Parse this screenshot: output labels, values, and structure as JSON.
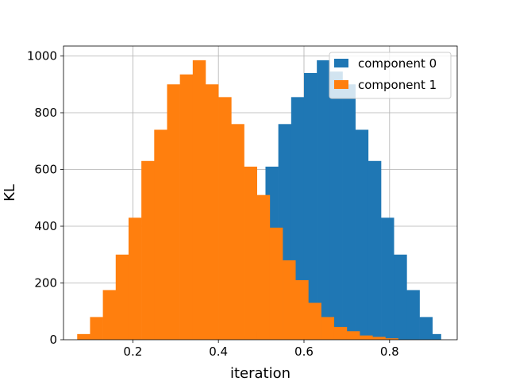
{
  "chart_data": {
    "type": "histogram",
    "xlabel": "iteration",
    "ylabel": "KL",
    "xlim": [
      0.038,
      0.958
    ],
    "ylim": [
      0,
      1035
    ],
    "grid": true,
    "xticks": [
      {
        "value": 0.2,
        "label": "0.2"
      },
      {
        "value": 0.4,
        "label": "0.4"
      },
      {
        "value": 0.6,
        "label": "0.6"
      },
      {
        "value": 0.8,
        "label": "0.8"
      }
    ],
    "yticks": [
      {
        "value": 0,
        "label": "0"
      },
      {
        "value": 200,
        "label": "200"
      },
      {
        "value": 400,
        "label": "400"
      },
      {
        "value": 600,
        "label": "600"
      },
      {
        "value": 800,
        "label": "800"
      },
      {
        "value": 1000,
        "label": "1000"
      }
    ],
    "legend_position": "top-right",
    "series": [
      {
        "name": "component 0",
        "color": "#1f77b4",
        "bins": [
          0.38,
          0.41,
          0.44,
          0.47,
          0.5,
          0.51,
          0.54,
          0.57,
          0.6,
          0.63,
          0.66,
          0.69,
          0.72,
          0.75,
          0.78,
          0.81,
          0.84,
          0.87,
          0.9,
          0.92
        ],
        "values": [
          2,
          5,
          12,
          30,
          30,
          610,
          760,
          855,
          940,
          985,
          945,
          900,
          740,
          630,
          430,
          300,
          175,
          80,
          20
        ]
      },
      {
        "name": "component 1",
        "color": "#ff7f0e",
        "bins": [
          0.07,
          0.1,
          0.13,
          0.16,
          0.19,
          0.22,
          0.25,
          0.28,
          0.31,
          0.34,
          0.37,
          0.4,
          0.43,
          0.46,
          0.49,
          0.52,
          0.55,
          0.58,
          0.61,
          0.64,
          0.67,
          0.7,
          0.73,
          0.76,
          0.79,
          0.82
        ],
        "values": [
          20,
          80,
          175,
          300,
          430,
          630,
          740,
          900,
          935,
          985,
          900,
          855,
          760,
          610,
          510,
          395,
          280,
          210,
          130,
          80,
          45,
          30,
          15,
          10,
          5
        ]
      }
    ]
  }
}
